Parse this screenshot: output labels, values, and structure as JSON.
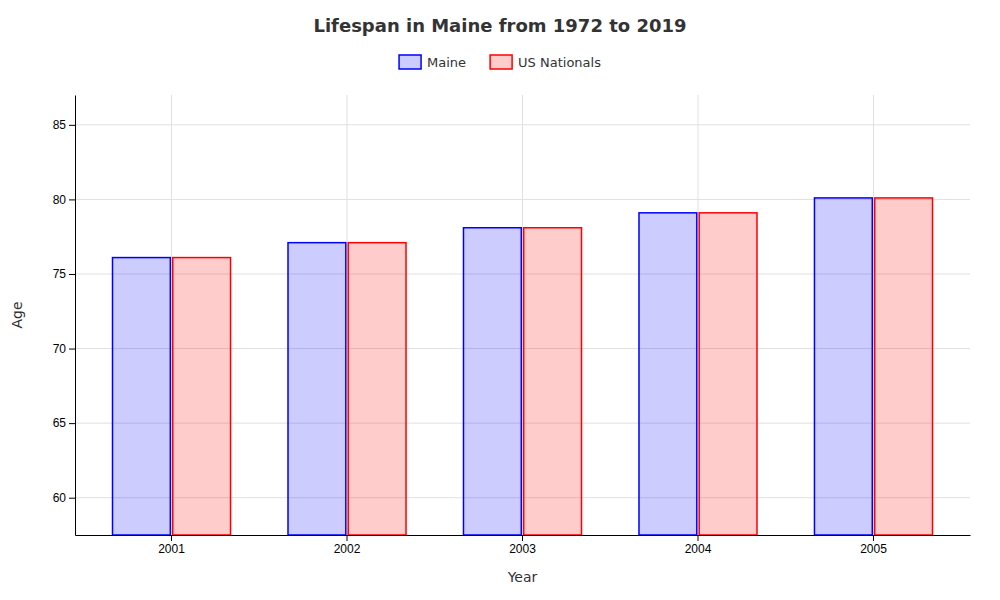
{
  "chart_data": {
    "type": "bar",
    "title": "Lifespan in Maine from 1972 to 2019",
    "x_label": "Year",
    "y_label": "Age",
    "categories": [
      "2001",
      "2002",
      "2003",
      "2004",
      "2005"
    ],
    "series": [
      {
        "name": "Maine",
        "color": "#0000ff",
        "values": [
          76.1,
          77.1,
          78.1,
          79.1,
          80.1
        ]
      },
      {
        "name": "US Nationals",
        "color": "#ff0000",
        "values": [
          76.1,
          77.1,
          78.1,
          79.1,
          80.1
        ]
      }
    ],
    "ylim": [
      57.5,
      87
    ],
    "yticks": [
      60,
      65,
      70,
      75,
      80,
      85
    ],
    "grid": true,
    "legend": "top"
  }
}
